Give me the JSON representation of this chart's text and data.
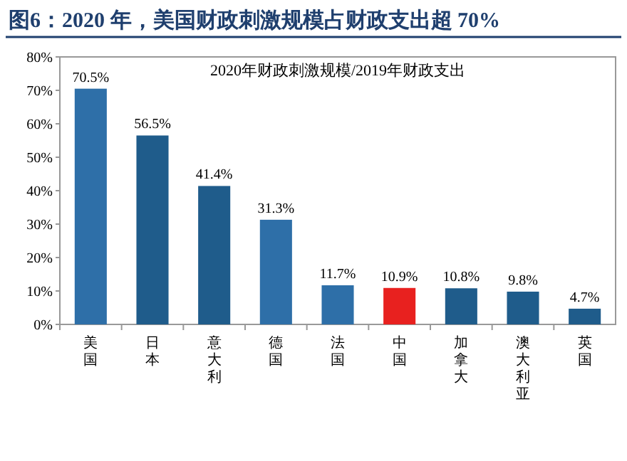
{
  "chart_data": {
    "type": "bar",
    "title": "图6：2020 年，美国财政刺激规模占财政支出超 70%",
    "subtitle": "2020年财政刺激规模/2019年财政支出",
    "categories": [
      "美国",
      "日本",
      "意大利",
      "德国",
      "法国",
      "中国",
      "加拿大",
      "澳大利亚",
      "英国"
    ],
    "values": [
      70.5,
      56.5,
      41.4,
      31.3,
      11.7,
      10.9,
      10.8,
      9.8,
      4.7
    ],
    "colors": [
      "#2e6fa8",
      "#1f5c8b",
      "#1f5c8b",
      "#2e6fa8",
      "#2e6fa8",
      "#e8211f",
      "#1f5c8b",
      "#1f5c8b",
      "#1f5c8b"
    ],
    "value_labels": [
      "70.5%",
      "56.5%",
      "41.4%",
      "31.3%",
      "11.7%",
      "10.9%",
      "10.8%",
      "9.8%",
      "4.7%"
    ],
    "ylim": [
      0,
      80
    ],
    "yticks": [
      {
        "value": 0,
        "label": "0%"
      },
      {
        "value": 10,
        "label": "10%"
      },
      {
        "value": 20,
        "label": "20%"
      },
      {
        "value": 30,
        "label": "30%"
      },
      {
        "value": 40,
        "label": "40%"
      },
      {
        "value": 50,
        "label": "50%"
      },
      {
        "value": 60,
        "label": "60%"
      },
      {
        "value": 70,
        "label": "70%"
      },
      {
        "value": 80,
        "label": "80%"
      }
    ]
  }
}
